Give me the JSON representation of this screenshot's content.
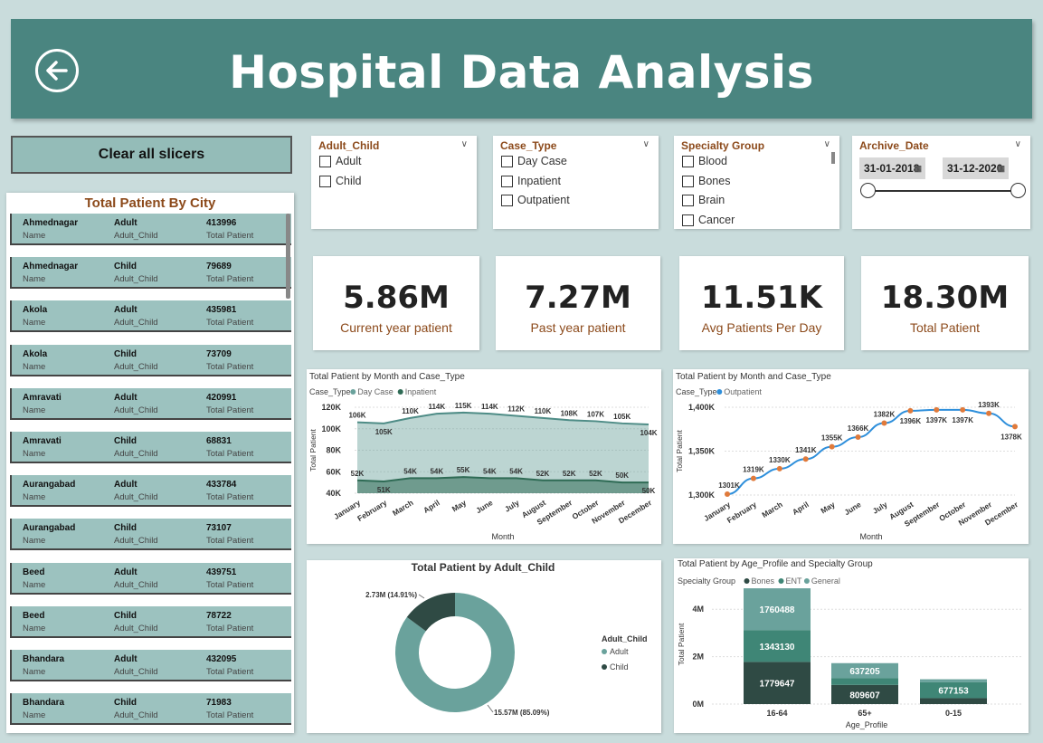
{
  "header": {
    "title": "Hospital Data Analysis"
  },
  "clear_button": "Clear all slicers",
  "city_table": {
    "title": "Total Patient By City",
    "col_labels": [
      "Name",
      "Adult_Child",
      "Total Patient"
    ],
    "rows": [
      [
        "Ahmednagar",
        "Adult",
        "413996"
      ],
      [
        "Ahmednagar",
        "Child",
        "79689"
      ],
      [
        "Akola",
        "Adult",
        "435981"
      ],
      [
        "Akola",
        "Child",
        "73709"
      ],
      [
        "Amravati",
        "Adult",
        "420991"
      ],
      [
        "Amravati",
        "Child",
        "68831"
      ],
      [
        "Aurangabad",
        "Adult",
        "433784"
      ],
      [
        "Aurangabad",
        "Child",
        "73107"
      ],
      [
        "Beed",
        "Adult",
        "439751"
      ],
      [
        "Beed",
        "Child",
        "78722"
      ],
      [
        "Bhandara",
        "Adult",
        "432095"
      ],
      [
        "Bhandara",
        "Child",
        "71983"
      ]
    ]
  },
  "slicers": {
    "adult_child": {
      "title": "Adult_Child",
      "options": [
        "Adult",
        "Child"
      ]
    },
    "case_type": {
      "title": "Case_Type",
      "options": [
        "Day Case",
        "Inpatient",
        "Outpatient"
      ]
    },
    "specialty": {
      "title": "Specialty Group",
      "options": [
        "Blood",
        "Bones",
        "Brain",
        "Cancer"
      ]
    },
    "archive": {
      "title": "Archive_Date",
      "start": "31-01-2018",
      "end": "31-12-2020"
    }
  },
  "kpis": [
    {
      "value": "5.86M",
      "label": "Current year patient"
    },
    {
      "value": "7.27M",
      "label": "Past year patient"
    },
    {
      "value": "11.51K",
      "label": "Avg Patients Per Day"
    },
    {
      "value": "18.30M",
      "label": "Total Patient"
    }
  ],
  "chart_data": [
    {
      "type": "area",
      "title": "Total Patient by Month and Case_Type",
      "legend_title": "Case_Type",
      "xlabel": "Month",
      "ylabel": "Total Patient",
      "ylim": [
        40000,
        120000
      ],
      "yticks": [
        "40K",
        "60K",
        "80K",
        "100K",
        "120K"
      ],
      "categories": [
        "January",
        "February",
        "March",
        "April",
        "May",
        "June",
        "July",
        "August",
        "September",
        "October",
        "November",
        "December"
      ],
      "series": [
        {
          "name": "Day Case",
          "values": [
            106000,
            105000,
            110000,
            114000,
            115000,
            114000,
            112000,
            110000,
            108000,
            107000,
            105000,
            104000
          ],
          "labels": [
            "106K",
            "105K",
            "110K",
            "114K",
            "115K",
            "114K",
            "112K",
            "110K",
            "108K",
            "107K",
            "105K",
            "104K"
          ],
          "color": "#6aa29c"
        },
        {
          "name": "Inpatient",
          "values": [
            52000,
            51000,
            54000,
            54000,
            55000,
            54000,
            54000,
            52000,
            52000,
            52000,
            50000,
            50000
          ],
          "labels": [
            "52K",
            "51K",
            "54K",
            "54K",
            "55K",
            "54K",
            "54K",
            "52K",
            "52K",
            "52K",
            "50K",
            "50K"
          ],
          "color": "#2f6b55"
        }
      ]
    },
    {
      "type": "line",
      "title": "Total Patient by Month and Case_Type",
      "legend_title": "Case_Type",
      "xlabel": "Month",
      "ylabel": "Total Patient",
      "ylim": [
        1300000,
        1400000
      ],
      "yticks": [
        "1,300K",
        "1,350K",
        "1,400K"
      ],
      "categories": [
        "January",
        "February",
        "March",
        "April",
        "May",
        "June",
        "July",
        "August",
        "September",
        "October",
        "November",
        "December"
      ],
      "series": [
        {
          "name": "Outpatient",
          "values": [
            1301000,
            1319000,
            1330000,
            1341000,
            1355000,
            1366000,
            1382000,
            1396000,
            1397000,
            1397000,
            1393000,
            1378000
          ],
          "labels": [
            "1301K",
            "1319K",
            "1330K",
            "1341K",
            "1355K",
            "1366K",
            "1382K",
            "1396K",
            "1397K",
            "1397K",
            "1393K",
            "1378K"
          ],
          "color": "#2e8fdb",
          "marker_color": "#e07a3b"
        }
      ]
    },
    {
      "type": "pie",
      "title": "Total Patient by Adult_Child",
      "legend_title": "Adult_Child",
      "slices": [
        {
          "name": "Adult",
          "value": 15.57,
          "percent": 85.09,
          "label": "15.57M (85.09%)",
          "color": "#6aa29c"
        },
        {
          "name": "Child",
          "value": 2.73,
          "percent": 14.91,
          "label": "2.73M (14.91%)",
          "color": "#2f4a44"
        }
      ]
    },
    {
      "type": "bar",
      "title": "Total Patient by Age_Profile and Specialty Group",
      "legend_title": "Specialty Group",
      "xlabel": "Age_Profile",
      "ylabel": "Total Patient",
      "ylim": [
        0,
        5000000
      ],
      "yticks": [
        "0M",
        "2M",
        "4M"
      ],
      "categories": [
        "16-64",
        "65+",
        "0-15"
      ],
      "series": [
        {
          "name": "Bones",
          "values": [
            1779647,
            809607,
            250000
          ],
          "labels": [
            "1779647",
            "809607",
            ""
          ],
          "color": "#2f4a44"
        },
        {
          "name": "ENT",
          "values": [
            1343130,
            280000,
            677153
          ],
          "labels": [
            "1343130",
            "",
            "677153"
          ],
          "color": "#3f8676"
        },
        {
          "name": "General",
          "values": [
            1760488,
            637205,
            120000
          ],
          "labels": [
            "1760488",
            "637205",
            ""
          ],
          "color": "#6aa29c"
        }
      ]
    }
  ]
}
